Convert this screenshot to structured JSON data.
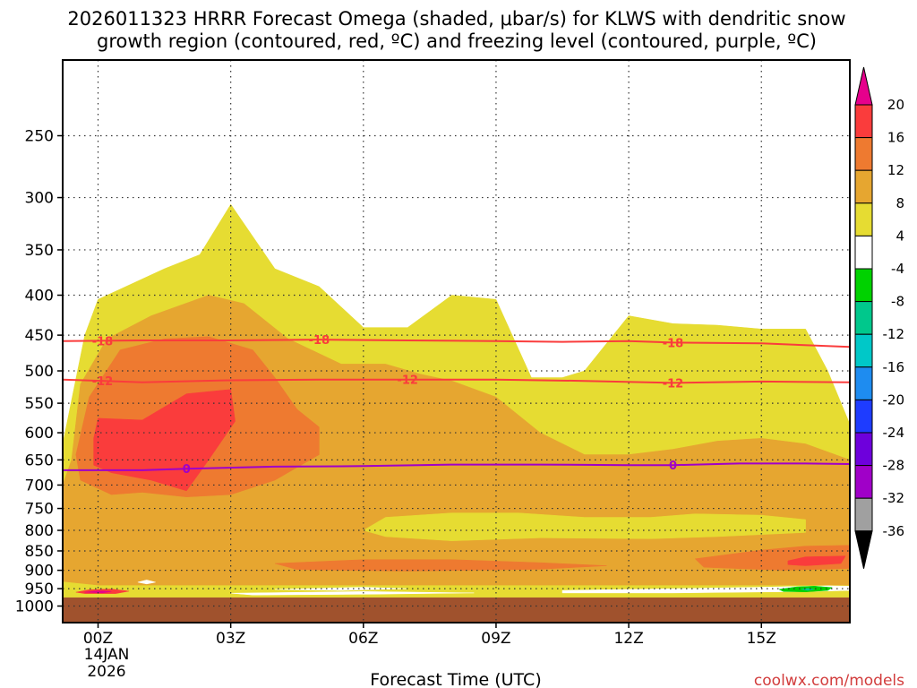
{
  "chart_data": {
    "type": "time-height cross section (filled contour + line contours)",
    "title_line1": "2026011323 HRRR Forecast Omega (shaded, μbar/s) for KLWS with dendritic snow",
    "title_line2": "growth region (contoured, red, ºC) and freezing level (contoured, purple, ºC)",
    "xlabel": "Forecast Time (UTC)",
    "x_hours_range": [
      -0.8,
      17.0
    ],
    "x_ticks": [
      {
        "hour": 0,
        "label": "00Z"
      },
      {
        "hour": 3,
        "label": "03Z"
      },
      {
        "hour": 6,
        "label": "06Z"
      },
      {
        "hour": 9,
        "label": "09Z"
      },
      {
        "hour": 12,
        "label": "12Z"
      },
      {
        "hour": 15,
        "label": "15Z"
      }
    ],
    "x_subtick_lines": [
      "14JAN",
      "2026"
    ],
    "y_pressure_range_hpa": [
      1050,
      200
    ],
    "y_ticks": [
      250,
      300,
      350,
      400,
      450,
      500,
      550,
      600,
      650,
      700,
      750,
      800,
      850,
      900,
      950,
      1000
    ],
    "ground_level_hpa": 975,
    "omega_colorbar": [
      {
        "label": "20",
        "color": "#fa3c3c"
      },
      {
        "label": "16",
        "color": "#ee7a30"
      },
      {
        "label": "12",
        "color": "#e6a630"
      },
      {
        "label": "8",
        "color": "#e6dc32"
      },
      {
        "label": "4",
        "color": "#ffffff"
      },
      {
        "label": "-4",
        "color": "#00d200"
      },
      {
        "label": "-8",
        "color": "#00c88c"
      },
      {
        "label": "-12",
        "color": "#00c8c8"
      },
      {
        "label": "-16",
        "color": "#1e8cf0"
      },
      {
        "label": "-20",
        "color": "#1e3cff"
      },
      {
        "label": "-24",
        "color": "#6e00dc"
      },
      {
        "label": "-28",
        "color": "#a000c8"
      },
      {
        "label": "-32",
        "color": "#a0a0a0"
      },
      {
        "label": "-36",
        "color": ""
      }
    ],
    "colorbar_top_color": "#e6008c",
    "colorbar_bottom_color": "#000000",
    "ground_color": "#a0522d",
    "omega_regions": [
      {
        "level": "4-8",
        "color": "#e6dc32",
        "points": [
          [
            -0.8,
            620
          ],
          [
            -0.3,
            450
          ],
          [
            0.0,
            405
          ],
          [
            1.5,
            370
          ],
          [
            2.3,
            355
          ],
          [
            3.0,
            306
          ],
          [
            4.0,
            370
          ],
          [
            5.0,
            390
          ],
          [
            6.0,
            440
          ],
          [
            7.0,
            440
          ],
          [
            8.0,
            400
          ],
          [
            9.0,
            405
          ],
          [
            9.8,
            510
          ],
          [
            10.5,
            510
          ],
          [
            11.0,
            500
          ],
          [
            12.0,
            425
          ],
          [
            13.0,
            435
          ],
          [
            14.0,
            437
          ],
          [
            15.0,
            442
          ],
          [
            16.0,
            442
          ],
          [
            16.5,
            500
          ],
          [
            17.0,
            585
          ],
          [
            17.0,
            975
          ],
          [
            -0.8,
            975
          ]
        ]
      },
      {
        "level": "8-12",
        "color": "#e6a630",
        "points": [
          [
            -0.6,
            650
          ],
          [
            -0.4,
            520
          ],
          [
            0.2,
            455
          ],
          [
            1.2,
            425
          ],
          [
            2.5,
            400
          ],
          [
            3.3,
            410
          ],
          [
            4.3,
            455
          ],
          [
            5.5,
            490
          ],
          [
            6.5,
            490
          ],
          [
            7.3,
            505
          ],
          [
            8.0,
            515
          ],
          [
            9.0,
            540
          ],
          [
            10.0,
            600
          ],
          [
            11.0,
            640
          ],
          [
            12.0,
            640
          ],
          [
            13.0,
            630
          ],
          [
            14.0,
            615
          ],
          [
            15.0,
            610
          ],
          [
            16.0,
            620
          ],
          [
            17.0,
            650
          ],
          [
            17.0,
            940
          ],
          [
            0.0,
            940
          ],
          [
            -0.8,
            930
          ],
          [
            -0.8,
            700
          ]
        ]
      },
      {
        "level": "12-16",
        "color": "#ee7a30",
        "points": [
          [
            -0.5,
            640
          ],
          [
            -0.2,
            540
          ],
          [
            0.5,
            470
          ],
          [
            1.5,
            455
          ],
          [
            2.5,
            452
          ],
          [
            3.5,
            470
          ],
          [
            4.0,
            510
          ],
          [
            4.5,
            560
          ],
          [
            5.0,
            590
          ],
          [
            5.0,
            640
          ],
          [
            4.0,
            690
          ],
          [
            3.0,
            720
          ],
          [
            2.0,
            725
          ],
          [
            1.0,
            715
          ],
          [
            0.3,
            720
          ],
          [
            -0.4,
            690
          ]
        ]
      },
      {
        "level": "16-20",
        "color": "#fa3c3c",
        "points": [
          [
            -0.1,
            610
          ],
          [
            0.0,
            575
          ],
          [
            1.0,
            578
          ],
          [
            2.0,
            535
          ],
          [
            3.0,
            528
          ],
          [
            3.1,
            580
          ],
          [
            2.5,
            650
          ],
          [
            2.0,
            712
          ],
          [
            1.2,
            690
          ],
          [
            0.3,
            675
          ],
          [
            -0.1,
            660
          ]
        ]
      },
      {
        "level": "4-8 inner",
        "color": "#e6dc32",
        "points": [
          [
            6.5,
            770
          ],
          [
            8.0,
            760
          ],
          [
            9.5,
            760
          ],
          [
            11.0,
            770
          ],
          [
            12.5,
            770
          ],
          [
            13.5,
            762
          ],
          [
            15.0,
            765
          ],
          [
            16.0,
            775
          ],
          [
            16.0,
            805
          ],
          [
            14.0,
            815
          ],
          [
            12.5,
            820
          ],
          [
            10.0,
            818
          ],
          [
            8.0,
            825
          ],
          [
            6.5,
            815
          ],
          [
            6.0,
            800
          ]
        ]
      },
      {
        "level": "12-16",
        "color": "#ee7a30",
        "points": [
          [
            4.0,
            882
          ],
          [
            6.0,
            872
          ],
          [
            8.0,
            872
          ],
          [
            10.0,
            880
          ],
          [
            11.5,
            888
          ],
          [
            10.0,
            897
          ],
          [
            7.0,
            902
          ],
          [
            4.5,
            898
          ]
        ]
      },
      {
        "level": "12-16",
        "color": "#ee7a30",
        "points": [
          [
            13.5,
            870
          ],
          [
            15.0,
            848
          ],
          [
            16.0,
            838
          ],
          [
            17.0,
            836
          ],
          [
            17.0,
            895
          ],
          [
            15.5,
            900
          ],
          [
            13.7,
            892
          ]
        ]
      },
      {
        "level": "16-20",
        "color": "#fa3c3c",
        "points": [
          [
            15.6,
            875
          ],
          [
            16.0,
            865
          ],
          [
            16.9,
            863
          ],
          [
            16.8,
            882
          ],
          [
            16.0,
            888
          ],
          [
            15.6,
            885
          ]
        ]
      },
      {
        "level": "-4-4",
        "color": "#ffffff",
        "points": [
          [
            4.0,
            952
          ],
          [
            6.0,
            946
          ],
          [
            7.0,
            950
          ],
          [
            5.5,
            955
          ]
        ]
      },
      {
        "level": "-4-4",
        "color": "#ffffff",
        "points": [
          [
            10.5,
            955
          ],
          [
            13.0,
            950
          ],
          [
            15.0,
            946
          ],
          [
            16.5,
            942
          ],
          [
            17.0,
            943
          ],
          [
            17.0,
            955
          ],
          [
            16.0,
            958
          ],
          [
            13.0,
            962
          ],
          [
            10.5,
            962
          ]
        ]
      },
      {
        "level": "-4-4",
        "color": "#ffffff",
        "points": [
          [
            3.0,
            963
          ],
          [
            6.0,
            958
          ],
          [
            8.5,
            962
          ],
          [
            6.0,
            966
          ],
          [
            3.5,
            968
          ]
        ]
      },
      {
        "level": "-4-4",
        "color": "#ffffff",
        "points": [
          [
            0.9,
            932
          ],
          [
            1.1,
            926
          ],
          [
            1.3,
            932
          ],
          [
            1.1,
            937
          ]
        ]
      },
      {
        "level": "-8--4",
        "color": "#00d200",
        "points": [
          [
            15.4,
            952
          ],
          [
            15.8,
            945
          ],
          [
            16.2,
            943
          ],
          [
            16.6,
            947
          ],
          [
            16.5,
            955
          ],
          [
            16.0,
            959
          ],
          [
            15.5,
            958
          ]
        ]
      },
      {
        "level": "-12--8",
        "color": "#00c88c",
        "points": [
          [
            15.9,
            952
          ],
          [
            16.05,
            949
          ],
          [
            16.2,
            952
          ],
          [
            16.05,
            955
          ]
        ]
      },
      {
        "level": "16-20",
        "color": "#fa3c3c",
        "points": [
          [
            -0.5,
            960
          ],
          [
            -0.2,
            953
          ],
          [
            0.3,
            951
          ],
          [
            0.7,
            957
          ],
          [
            0.4,
            964
          ],
          [
            -0.3,
            964
          ]
        ]
      },
      {
        "level": ">20",
        "color": "#e6008c",
        "points": [
          [
            -0.3,
            960
          ],
          [
            0.0,
            956
          ],
          [
            0.3,
            958
          ],
          [
            0.1,
            962
          ]
        ]
      }
    ],
    "temperature_contours": [
      {
        "label": "-18",
        "color": "#fa3c3c",
        "points": [
          [
            -0.8,
            458
          ],
          [
            1.0,
            457
          ],
          [
            3.0,
            457
          ],
          [
            5.0,
            456
          ],
          [
            7.0,
            457
          ],
          [
            9.0,
            458
          ],
          [
            10.5,
            459
          ],
          [
            12.0,
            458
          ],
          [
            13.0,
            460
          ],
          [
            15.0,
            461
          ],
          [
            17.0,
            466
          ]
        ],
        "label_at_hours": [
          0.1,
          5.0,
          13.0
        ]
      },
      {
        "label": "-12",
        "color": "#fa3c3c",
        "points": [
          [
            -0.8,
            513
          ],
          [
            1.0,
            517
          ],
          [
            3.0,
            514
          ],
          [
            5.0,
            513
          ],
          [
            7.0,
            513
          ],
          [
            9.0,
            513
          ],
          [
            11.0,
            515
          ],
          [
            13.0,
            518
          ],
          [
            15.0,
            516
          ],
          [
            17.0,
            517
          ]
        ],
        "label_at_hours": [
          0.1,
          7.0,
          13.0
        ]
      },
      {
        "label": "0",
        "color": "#a000c8",
        "points": [
          [
            -0.8,
            670
          ],
          [
            1.0,
            670
          ],
          [
            2.0,
            667
          ],
          [
            4.0,
            663
          ],
          [
            6.0,
            662
          ],
          [
            8.0,
            659
          ],
          [
            10.0,
            659
          ],
          [
            12.0,
            660
          ],
          [
            13.0,
            660
          ],
          [
            14.5,
            657
          ],
          [
            16.0,
            657
          ],
          [
            17.0,
            658
          ]
        ],
        "label_at_hours": [
          2.0,
          13.0
        ]
      }
    ]
  },
  "credit": "coolwx.com/models"
}
